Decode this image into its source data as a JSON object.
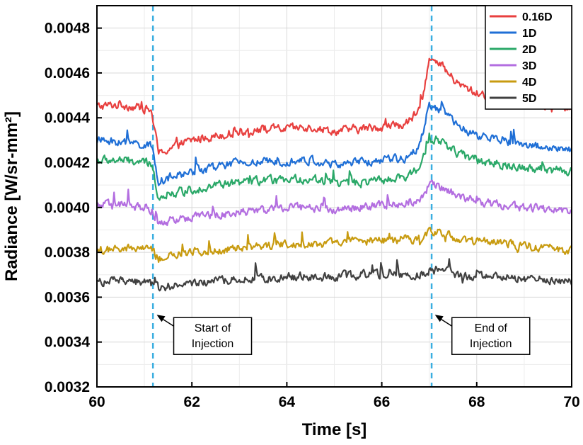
{
  "chart_data": {
    "type": "line",
    "xlabel": "Time [s]",
    "ylabel": "Radiance [W/sr-mm²]",
    "xlim": [
      60,
      70
    ],
    "ylim": [
      0.0032,
      0.0049
    ],
    "xticks": [
      60,
      62,
      64,
      66,
      68,
      70
    ],
    "xtick_labels": [
      "60",
      "62",
      "64",
      "66",
      "68",
      "70"
    ],
    "yticks": [
      0.0032,
      0.0034,
      0.0036,
      0.0038,
      0.004,
      0.0042,
      0.0044,
      0.0046,
      0.0048
    ],
    "ytick_labels": [
      "0.0032",
      "0.0034",
      "0.0036",
      "0.0038",
      "0.0040",
      "0.0042",
      "0.0044",
      "0.0046",
      "0.0048"
    ],
    "grid": true,
    "legend_position": "top-right",
    "x": [
      60.0,
      60.5,
      61.0,
      61.15,
      61.3,
      61.5,
      62.0,
      62.5,
      63.0,
      63.5,
      64.0,
      64.5,
      65.0,
      65.5,
      66.0,
      66.5,
      66.8,
      67.0,
      67.3,
      67.6,
      68.0,
      68.5,
      69.0,
      69.5,
      70.0
    ],
    "series": [
      {
        "name": "0.16D",
        "color": "#e8403f",
        "values": [
          0.00445,
          0.00446,
          0.00444,
          0.00443,
          0.00424,
          0.00426,
          0.0043,
          0.00432,
          0.00434,
          0.00435,
          0.00435,
          0.00436,
          0.00434,
          0.00435,
          0.00436,
          0.00437,
          0.00443,
          0.00466,
          0.00462,
          0.00455,
          0.00451,
          0.00449,
          0.00447,
          0.00446,
          0.00444
        ]
      },
      {
        "name": "1D",
        "color": "#1f6fd6",
        "values": [
          0.0043,
          0.00429,
          0.00428,
          0.00427,
          0.00412,
          0.00413,
          0.00416,
          0.00418,
          0.0042,
          0.0042,
          0.00421,
          0.00421,
          0.00419,
          0.0042,
          0.00421,
          0.00422,
          0.00428,
          0.00446,
          0.00443,
          0.00436,
          0.00432,
          0.0043,
          0.00428,
          0.00427,
          0.00425
        ]
      },
      {
        "name": "2D",
        "color": "#2aa868",
        "values": [
          0.00421,
          0.00421,
          0.0042,
          0.00419,
          0.00405,
          0.00406,
          0.00408,
          0.0041,
          0.00411,
          0.00412,
          0.00412,
          0.00413,
          0.00411,
          0.00411,
          0.00412,
          0.00413,
          0.00418,
          0.00431,
          0.00429,
          0.00424,
          0.00421,
          0.00419,
          0.00418,
          0.00417,
          0.00416
        ]
      },
      {
        "name": "3D",
        "color": "#b36ee0",
        "values": [
          0.00401,
          0.00401,
          0.004,
          0.00399,
          0.00392,
          0.00394,
          0.00396,
          0.00397,
          0.00398,
          0.00399,
          0.004,
          0.004,
          0.00399,
          0.004,
          0.00401,
          0.00402,
          0.00404,
          0.0041,
          0.00409,
          0.00405,
          0.00403,
          0.00401,
          0.004,
          0.00399,
          0.00398
        ]
      },
      {
        "name": "4D",
        "color": "#c89b10",
        "values": [
          0.00381,
          0.00381,
          0.00382,
          0.00381,
          0.00377,
          0.00378,
          0.0038,
          0.00381,
          0.00382,
          0.00383,
          0.00384,
          0.00384,
          0.00384,
          0.00385,
          0.00385,
          0.00386,
          0.00386,
          0.0039,
          0.00389,
          0.00386,
          0.00385,
          0.00384,
          0.00383,
          0.00382,
          0.00381
        ]
      },
      {
        "name": "5D",
        "color": "#404040",
        "values": [
          0.00367,
          0.00367,
          0.00367,
          0.00366,
          0.00364,
          0.00365,
          0.00366,
          0.00367,
          0.00368,
          0.00368,
          0.00369,
          0.00369,
          0.00369,
          0.0037,
          0.0037,
          0.0037,
          0.0037,
          0.00372,
          0.00372,
          0.0037,
          0.00369,
          0.00369,
          0.00368,
          0.00368,
          0.00367
        ]
      }
    ],
    "vlines": [
      {
        "x": 61.18,
        "color": "#3aaee0"
      },
      {
        "x": 67.05,
        "color": "#3aaee0"
      }
    ],
    "annotations": [
      {
        "lines": [
          "Start of",
          "Injection"
        ],
        "x": 61.2,
        "y": 0.00343
      },
      {
        "lines": [
          "End of",
          "Injection"
        ],
        "x": 67.06,
        "y": 0.00343
      }
    ]
  }
}
